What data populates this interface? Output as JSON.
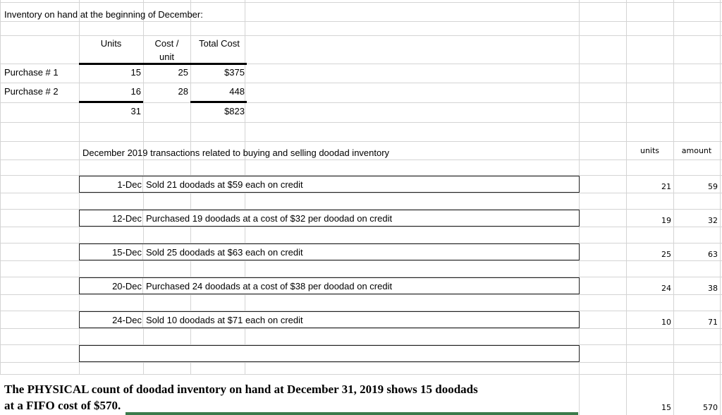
{
  "title": "Inventory on hand at the beginning of December:",
  "beginning_table": {
    "headers": [
      "Units",
      "Cost /",
      "unit",
      "Total Cost"
    ],
    "rows": [
      {
        "label": "Purchase # 1",
        "units": "15",
        "cost": "25",
        "total": "$375"
      },
      {
        "label": "Purchase # 2",
        "units": "16",
        "cost": "28",
        "total": "448"
      }
    ],
    "totals": {
      "units": "31",
      "total": "$823"
    }
  },
  "transactions": {
    "heading": "December  2019 transactions related to buying and selling doodad inventory",
    "col_units": "units",
    "col_amount": "amount",
    "rows": [
      {
        "date": "1-Dec",
        "desc": "Sold 21 doodads  at $59 each on credit",
        "units": "21",
        "amount": "59"
      },
      {
        "date": "12-Dec",
        "desc": "Purchased 19 doodads  at a cost of $32 per doodad on credit",
        "units": "19",
        "amount": "32"
      },
      {
        "date": "15-Dec",
        "desc": "Sold 25 doodads  at $63 each on credit",
        "units": "25",
        "amount": "63"
      },
      {
        "date": "20-Dec",
        "desc": "Purchased 24 doodads  at a cost of $38 per doodad on credit",
        "units": "24",
        "amount": "38"
      },
      {
        "date": "24-Dec",
        "desc": "Sold 10 doodads  at $71 each on credit",
        "units": "10",
        "amount": "71"
      }
    ]
  },
  "physical": {
    "line1": "The PHYSICAL count of doodad inventory on hand at December  31, 2019 shows 15 doodads",
    "line2": "at a FIFO cost of $570.",
    "units": "15",
    "amount": "570"
  },
  "colors": {
    "grid": "#d4d4d4",
    "selection": "#3a7a4a"
  }
}
